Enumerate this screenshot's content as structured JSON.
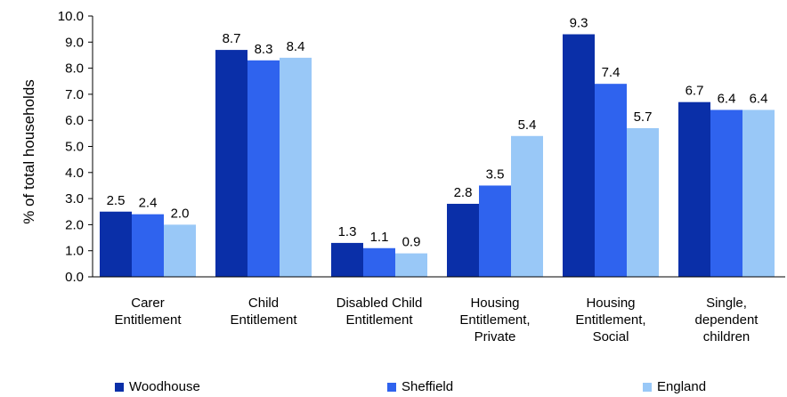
{
  "chart_data": {
    "type": "bar",
    "categories": [
      [
        "Carer",
        "Entitlement"
      ],
      [
        "Child",
        "Entitlement"
      ],
      [
        "Disabled Child",
        "Entitlement"
      ],
      [
        "Housing",
        "Entitlement,",
        "Private"
      ],
      [
        "Housing",
        "Entitlement,",
        "Social"
      ],
      [
        "Single,",
        "dependent",
        "children"
      ]
    ],
    "series": [
      {
        "name": "Woodhouse",
        "color": "#0a2fa8",
        "values": [
          2.5,
          8.7,
          1.3,
          2.8,
          9.3,
          6.7
        ]
      },
      {
        "name": "Sheffield",
        "color": "#2f63ee",
        "values": [
          2.4,
          8.3,
          1.1,
          3.5,
          7.4,
          6.4
        ]
      },
      {
        "name": "England",
        "color": "#99c8f7",
        "values": [
          2.0,
          8.4,
          0.9,
          5.4,
          5.7,
          6.4
        ]
      }
    ],
    "ylabel": "% of total households",
    "ylim": [
      0,
      10
    ],
    "yticks": [
      "0.0",
      "1.0",
      "2.0",
      "3.0",
      "4.0",
      "5.0",
      "6.0",
      "7.0",
      "8.0",
      "9.0",
      "10.0"
    ],
    "legend_position": "bottom"
  }
}
